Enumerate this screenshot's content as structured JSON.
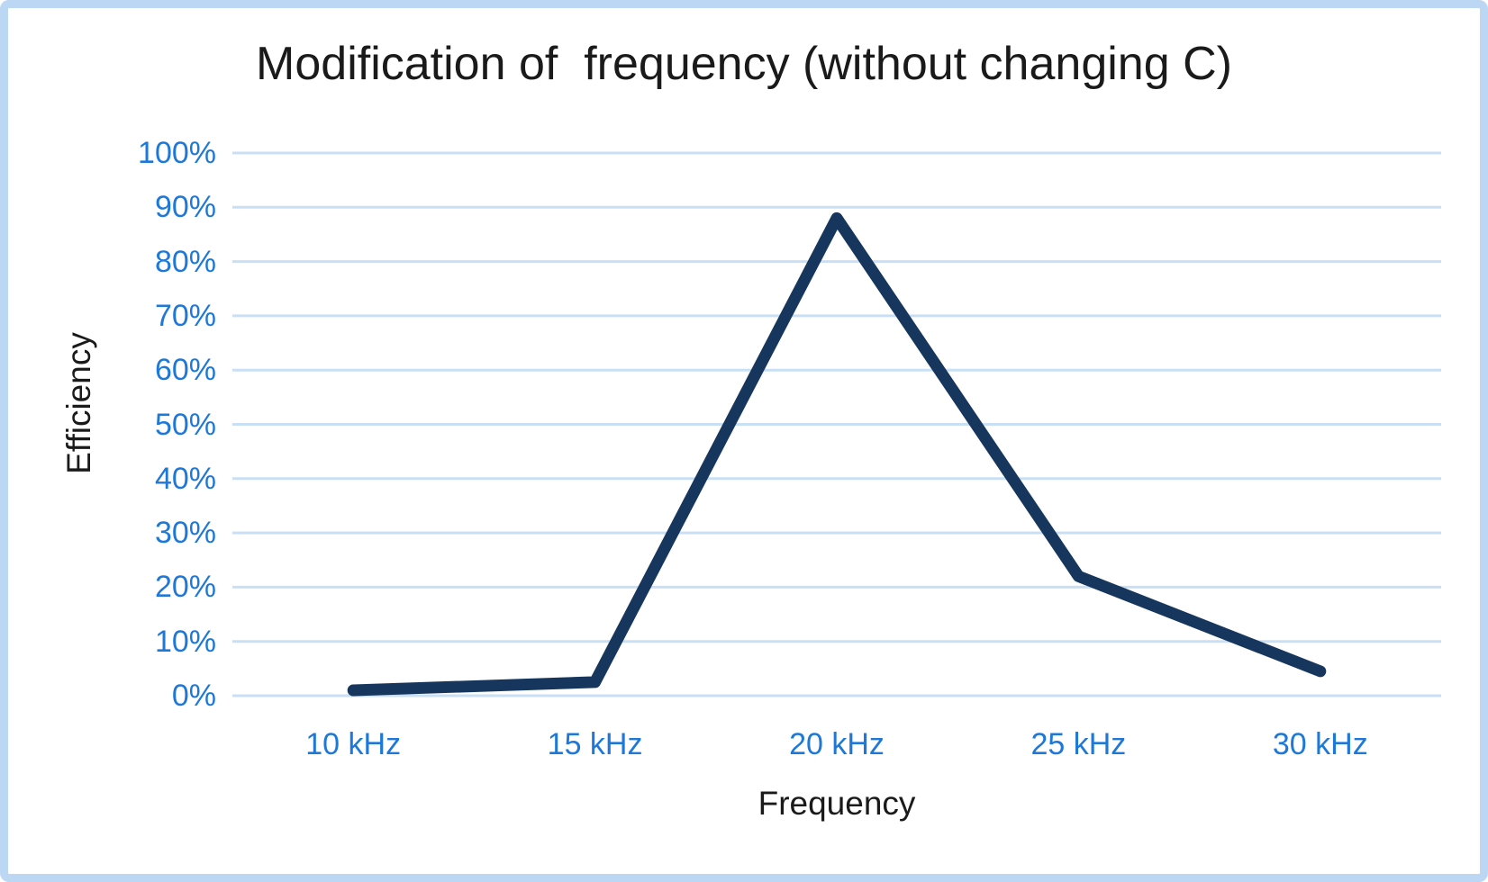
{
  "colors": {
    "series_line": "#17365d",
    "tick_label": "#1e78d9",
    "gridline": "#c9dff6",
    "frame_border": "#bcd7f3",
    "text": "#1a1a1a",
    "background": "#ffffff"
  },
  "chart_data": {
    "type": "line",
    "title": "Modification of  frequency (without changing C)",
    "categories": [
      "10 kHz",
      "15 kHz",
      "20 kHz",
      "25 kHz",
      "30 kHz"
    ],
    "values": [
      1,
      2.5,
      88,
      22,
      4.5
    ],
    "xlabel": "Frequency",
    "ylabel": "Efficiency",
    "ylim": [
      0,
      100
    ],
    "yticks": [
      {
        "value": 0,
        "label": "0%"
      },
      {
        "value": 10,
        "label": "10%"
      },
      {
        "value": 20,
        "label": "20%"
      },
      {
        "value": 30,
        "label": "30%"
      },
      {
        "value": 40,
        "label": "40%"
      },
      {
        "value": 50,
        "label": "50%"
      },
      {
        "value": 60,
        "label": "60%"
      },
      {
        "value": 70,
        "label": "70%"
      },
      {
        "value": 80,
        "label": "80%"
      },
      {
        "value": 90,
        "label": "90%"
      },
      {
        "value": 100,
        "label": "100%"
      }
    ],
    "grid": true,
    "legend": "none",
    "markers": "none"
  }
}
